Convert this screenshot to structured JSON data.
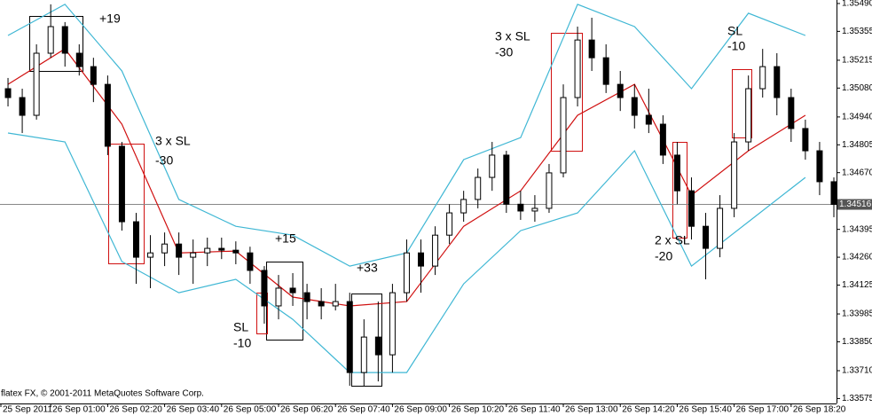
{
  "chart_data": {
    "type": "candlestick",
    "x": [
      0,
      20,
      40,
      60,
      80,
      100,
      120,
      140,
      160,
      180,
      200,
      220,
      240,
      260,
      280,
      300,
      320,
      340,
      360,
      380,
      400,
      420,
      440,
      460,
      480,
      500,
      520,
      540,
      560,
      580,
      600,
      620,
      640,
      660,
      680,
      700,
      720,
      740,
      760,
      780,
      800,
      820,
      840,
      860,
      880,
      900,
      920,
      940,
      960,
      980,
      1000,
      1020,
      1040,
      1060,
      1080,
      1100,
      1120,
      1140,
      1160
    ],
    "open": [
      1.35077,
      1.35034,
      1.34948,
      1.35249,
      1.35378,
      1.35249,
      1.35184,
      1.35098,
      1.34798,
      1.34432,
      1.3426,
      1.34281,
      1.34324,
      1.3426,
      1.34281,
      1.34303,
      1.34294,
      1.34281,
      1.34196,
      1.34024,
      1.3411,
      1.34088,
      1.34045,
      1.34024,
      1.34045,
      1.33701,
      1.33873,
      1.33787,
      1.34088,
      1.34281,
      1.34217,
      1.34367,
      1.34475,
      1.3454,
      1.34647,
      1.34755,
      1.34517,
      1.34484,
      1.34497,
      1.34669,
      1.35034,
      1.35313,
      1.35227,
      1.35098,
      1.35034,
      1.34948,
      1.34905,
      1.34755,
      1.34582,
      1.3441,
      1.34303,
      1.34497,
      1.34819,
      1.35077,
      1.35184,
      1.35034,
      1.34884,
      1.34776,
      1.34626
    ],
    "high": [
      1.35129,
      1.35077,
      1.35292,
      1.35486,
      1.354,
      1.35292,
      1.35227,
      1.35141,
      1.34819,
      1.34475,
      1.34367,
      1.3438,
      1.3438,
      1.34346,
      1.34355,
      1.34355,
      1.34337,
      1.34311,
      1.34217,
      1.34174,
      1.34183,
      1.34131,
      1.3411,
      1.34131,
      1.34088,
      1.33959,
      1.34045,
      1.34131,
      1.34346,
      1.34346,
      1.3441,
      1.34517,
      1.34582,
      1.3469,
      1.34819,
      1.34776,
      1.34582,
      1.34561,
      1.34712,
      1.35098,
      1.35378,
      1.35421,
      1.35292,
      1.35163,
      1.35098,
      1.35077,
      1.34948,
      1.34819,
      1.34647,
      1.34475,
      1.34561,
      1.34862,
      1.35141,
      1.3527,
      1.35249,
      1.35077,
      1.34927,
      1.34819,
      1.34647
    ],
    "low": [
      1.34991,
      1.34862,
      1.34927,
      1.35227,
      1.35184,
      1.35141,
      1.35012,
      1.34755,
      1.34389,
      1.34131,
      1.3411,
      1.34217,
      1.34174,
      1.34131,
      1.34217,
      1.34251,
      1.34226,
      1.34131,
      1.33938,
      1.33959,
      1.34024,
      1.33959,
      1.33959,
      1.34002,
      1.33637,
      1.33637,
      1.33658,
      1.33701,
      1.34045,
      1.34088,
      1.34174,
      1.34324,
      1.34432,
      1.34497,
      1.34582,
      1.34475,
      1.34441,
      1.34432,
      1.34475,
      1.34647,
      1.34991,
      1.35163,
      1.35056,
      1.34969,
      1.34884,
      1.34862,
      1.34712,
      1.34517,
      1.34346,
      1.34153,
      1.3426,
      1.34454,
      1.34776,
      1.35034,
      1.34948,
      1.34819,
      1.34733,
      1.34561,
      1.34454
    ],
    "close": [
      1.35034,
      1.34948,
      1.35249,
      1.35378,
      1.35249,
      1.35184,
      1.35098,
      1.34798,
      1.34432,
      1.3426,
      1.34281,
      1.34324,
      1.3426,
      1.34281,
      1.34303,
      1.34294,
      1.34281,
      1.34196,
      1.34024,
      1.3411,
      1.34088,
      1.34045,
      1.34024,
      1.34045,
      1.33701,
      1.33873,
      1.33787,
      1.34088,
      1.34281,
      1.34217,
      1.34367,
      1.34475,
      1.3454,
      1.34647,
      1.34755,
      1.34517,
      1.34484,
      1.34497,
      1.34669,
      1.35034,
      1.35313,
      1.35227,
      1.35098,
      1.35034,
      1.34948,
      1.34905,
      1.34755,
      1.34582,
      1.3441,
      1.34303,
      1.34497,
      1.34819,
      1.35077,
      1.35184,
      1.35034,
      1.34884,
      1.34776,
      1.34626,
      1.34516
    ],
    "up_color": "#ffffff",
    "down_color": "#000000",
    "lines": [
      {
        "color": "#d01010",
        "x": [
          0,
          80,
          160,
          240,
          320,
          400,
          480,
          560,
          640,
          720,
          800,
          880,
          960,
          1040,
          1120
        ],
        "values": [
          1.35098,
          1.3527,
          1.34905,
          1.34281,
          1.3429,
          1.34067,
          1.34024,
          1.34045,
          1.3441,
          1.34582,
          1.34948,
          1.35098,
          1.34561,
          1.34776,
          1.34948
        ]
      },
      {
        "color": "#3fb7d4",
        "x": [
          0,
          80,
          160,
          240,
          320,
          400,
          480,
          560,
          640,
          720,
          800,
          880,
          960,
          1040,
          1120
        ],
        "values": [
          1.35335,
          1.35486,
          1.35163,
          1.3454,
          1.3441,
          1.34367,
          1.34217,
          1.34281,
          1.34733,
          1.3484,
          1.35486,
          1.35378,
          1.35077,
          1.35443,
          1.35335
        ]
      },
      {
        "color": "#3fb7d4",
        "x": [
          0,
          80,
          160,
          240,
          320,
          400,
          480,
          560,
          640,
          720,
          800,
          880,
          960,
          1040,
          1120
        ],
        "values": [
          1.34862,
          1.34819,
          1.34239,
          1.34088,
          1.34153,
          1.33959,
          1.33701,
          1.33701,
          1.34131,
          1.34389,
          1.34475,
          1.34776,
          1.34217,
          1.34432,
          1.34647
        ]
      }
    ],
    "xlim": [
      -11.25,
      1163.75
    ],
    "ylim": [
      1.33551,
      1.35507
    ],
    "xticks": [
      {
        "value": -10,
        "label": "25 Sep 2011"
      },
      {
        "value": 60,
        "label": "26 Sep 01:00"
      },
      {
        "value": 140,
        "label": "26 Sep 02:20"
      },
      {
        "value": 220,
        "label": "26 Sep 03:40"
      },
      {
        "value": 300,
        "label": "26 Sep 05:00"
      },
      {
        "value": 380,
        "label": "26 Sep 06:20"
      },
      {
        "value": 460,
        "label": "26 Sep 07:40"
      },
      {
        "value": 540,
        "label": "26 Sep 09:00"
      },
      {
        "value": 620,
        "label": "26 Sep 10:20"
      },
      {
        "value": 700,
        "label": "26 Sep 11:40"
      },
      {
        "value": 780,
        "label": "26 Sep 13:00"
      },
      {
        "value": 860,
        "label": "26 Sep 14:20"
      },
      {
        "value": 940,
        "label": "26 Sep 15:40"
      },
      {
        "value": 1020,
        "label": "26 Sep 17:00"
      },
      {
        "value": 1100,
        "label": "26 Sep 18:20"
      }
    ],
    "yticks": [
      {
        "value": 1.3549,
        "label": "1.35490"
      },
      1.35355,
      1.35215,
      {
        "value": 1.3508,
        "label": "1.35080"
      },
      {
        "value": 1.3494,
        "label": "1.34940"
      },
      1.34805,
      {
        "value": 1.3467,
        "label": "1.34670"
      },
      1.34395,
      {
        "value": 1.3426,
        "label": "1.34260"
      },
      1.34125,
      1.33985,
      {
        "value": 1.3385,
        "label": "1.33850"
      },
      {
        "value": 1.3371,
        "label": "1.33710"
      },
      1.33575
    ],
    "current_price": 1.34516,
    "annotations": [
      "+19",
      "3 x SL",
      "-30",
      "+15",
      "+33",
      "SL",
      "-10",
      "3 x SL",
      "-30",
      "2 x SL",
      "-20",
      "SL",
      "-10"
    ],
    "footer": "flatex FX, © 2001-2011 MetaQuotes Software Corp."
  }
}
